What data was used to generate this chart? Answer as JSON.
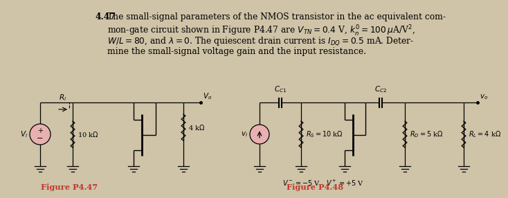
{
  "background_color": "#cfc3a8",
  "text_lines": [
    "The small-signal parameters of the NMOS transistor in the ac equivalent com-",
    "mon-gate circuit shown in Figure P4.47 are $V_{TN}=0.4$ V, $k_n^{\\prime}=100\\,\\mu$A/V$^2$,",
    "$W/L=80$, and $\\lambda=0$. The quiescent drain current is $I_{DQ}=0.5$ mA. Deter-",
    "mine the small-signal voltage gain and the input resistance."
  ],
  "problem_number": "4.47",
  "fig47_label": "Figure P4.47",
  "fig48_label": "Figure P4.48",
  "fig_label_color": "#c0392b",
  "text_fontsize": 8.8,
  "label_fontsize": 8.2
}
